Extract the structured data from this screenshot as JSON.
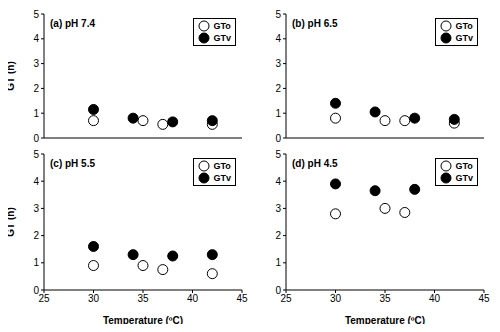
{
  "chart_data": [
    {
      "type": "scatter",
      "title": "(a) pH 7.4",
      "ylabel": "GT (h)",
      "xlim": [
        25,
        45
      ],
      "xticks": [
        25,
        30,
        35,
        40,
        45
      ],
      "ylim": [
        0,
        5
      ],
      "yticks": [
        0,
        1,
        2,
        3,
        4,
        5
      ],
      "grid": false,
      "legend": "upper right",
      "tick_labels": "y",
      "series": [
        {
          "name": "GTo",
          "color": "#000000",
          "marker": "open_circle",
          "x": [
            30,
            35,
            37,
            42
          ],
          "values": [
            0.7,
            0.7,
            0.55,
            0.55
          ]
        },
        {
          "name": "GTv",
          "color": "#000000",
          "marker": "circle",
          "x": [
            30,
            34,
            38,
            42
          ],
          "values": [
            1.15,
            0.8,
            0.65,
            0.7
          ]
        }
      ]
    },
    {
      "type": "scatter",
      "title": "(b) pH 6.5",
      "xlim": [
        25,
        45
      ],
      "xticks": [
        25,
        30,
        35,
        40,
        45
      ],
      "ylim": [
        0,
        5
      ],
      "yticks": [
        0,
        1,
        2,
        3,
        4,
        5
      ],
      "grid": false,
      "legend": "upper right",
      "tick_labels": "y",
      "series": [
        {
          "name": "GTo",
          "color": "#000000",
          "marker": "open_circle",
          "x": [
            30,
            35,
            37,
            42
          ],
          "values": [
            0.8,
            0.7,
            0.7,
            0.6
          ]
        },
        {
          "name": "GTv",
          "color": "#000000",
          "marker": "circle",
          "x": [
            30,
            34,
            38,
            42
          ],
          "values": [
            1.4,
            1.05,
            0.8,
            0.75
          ]
        }
      ]
    },
    {
      "type": "scatter",
      "title": "(c) pH 5.5",
      "ylabel": "GT (h)",
      "xlabel": "Temperature (ºC)",
      "xlim": [
        25,
        45
      ],
      "xticks": [
        25,
        30,
        35,
        40,
        45
      ],
      "ylim": [
        0,
        5
      ],
      "yticks": [
        0,
        1,
        2,
        3,
        4,
        5
      ],
      "grid": false,
      "legend": "upper right",
      "series": [
        {
          "name": "GTo",
          "color": "#000000",
          "marker": "open_circle",
          "x": [
            30,
            35,
            37,
            42
          ],
          "values": [
            0.9,
            0.9,
            0.75,
            0.6
          ]
        },
        {
          "name": "GTv",
          "color": "#000000",
          "marker": "circle",
          "x": [
            30,
            34,
            38,
            42
          ],
          "values": [
            1.6,
            1.3,
            1.25,
            1.3
          ]
        }
      ]
    },
    {
      "type": "scatter",
      "title": "(d) pH 4.5",
      "xlabel": "Temperature (ºC)",
      "xlim": [
        25,
        45
      ],
      "xticks": [
        25,
        30,
        35,
        40,
        45
      ],
      "ylim": [
        0,
        5
      ],
      "yticks": [
        0,
        1,
        2,
        3,
        4,
        5
      ],
      "grid": false,
      "legend": "upper right",
      "series": [
        {
          "name": "GTo",
          "color": "#000000",
          "marker": "open_circle",
          "x": [
            30,
            35,
            37
          ],
          "values": [
            2.8,
            3.0,
            2.85
          ]
        },
        {
          "name": "GTv",
          "color": "#000000",
          "marker": "circle",
          "x": [
            30,
            34,
            38
          ],
          "values": [
            3.9,
            3.65,
            3.7
          ]
        }
      ]
    }
  ]
}
